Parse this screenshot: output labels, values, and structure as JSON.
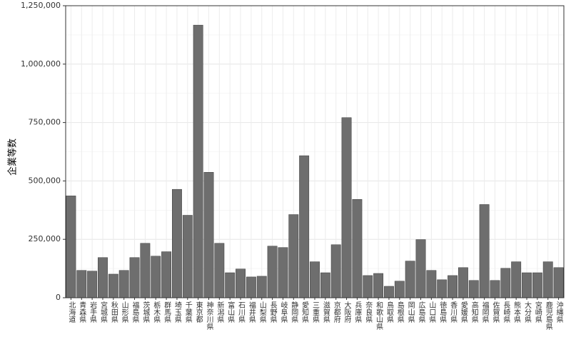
{
  "chart_data": {
    "type": "bar",
    "y_label": "企業等数",
    "categories": [
      "北海道",
      "青森県",
      "岩手県",
      "宮城県",
      "秋田県",
      "山形県",
      "福島県",
      "茨城県",
      "栃木県",
      "群馬県",
      "埼玉県",
      "千葉県",
      "東京都",
      "神奈川県",
      "新潟県",
      "富山県",
      "石川県",
      "福井県",
      "山梨県",
      "長野県",
      "岐阜県",
      "静岡県",
      "愛知県",
      "三重県",
      "滋賀県",
      "京都府",
      "大阪府",
      "兵庫県",
      "奈良県",
      "和歌山県",
      "鳥取県",
      "島根県",
      "岡山県",
      "広島県",
      "山口県",
      "徳島県",
      "香川県",
      "愛媛県",
      "高知県",
      "福岡県",
      "佐賀県",
      "長崎県",
      "熊本県",
      "大分県",
      "宮崎県",
      "鹿児島県",
      "沖縄県"
    ],
    "values": [
      436000,
      117000,
      114000,
      172000,
      101000,
      117000,
      172000,
      233000,
      178000,
      197000,
      464000,
      353000,
      1167000,
      537000,
      233000,
      107000,
      123000,
      89000,
      92000,
      221000,
      215000,
      356000,
      608000,
      154000,
      107000,
      227000,
      771000,
      421000,
      95000,
      104000,
      49000,
      71000,
      157000,
      249000,
      117000,
      77000,
      95000,
      129000,
      74000,
      399000,
      74000,
      126000,
      154000,
      107000,
      107000,
      154000,
      129000
    ],
    "color": "#6e6e6e",
    "ylim": [
      0,
      1250000
    ],
    "yticks": [
      {
        "value": 0,
        "label": "0"
      },
      {
        "value": 250000,
        "label": "250,000"
      },
      {
        "value": 500000,
        "label": "500,000"
      },
      {
        "value": 750000,
        "label": "750,000"
      },
      {
        "value": 1000000,
        "label": "1,000,000"
      },
      {
        "value": 1250000,
        "label": "1,250,000"
      }
    ],
    "grid": true
  }
}
